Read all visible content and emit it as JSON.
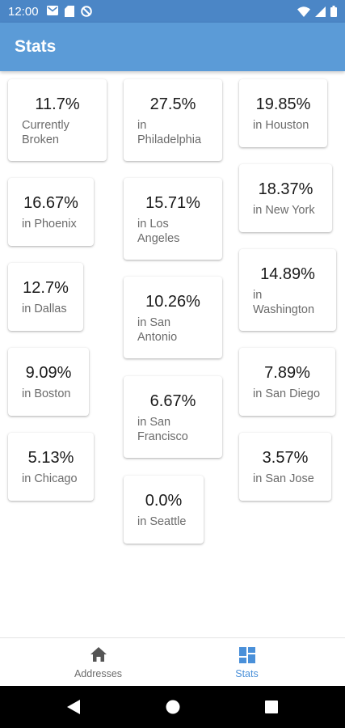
{
  "status_bar": {
    "time": "12:00",
    "left_icons": [
      "mail-icon",
      "sd-card-icon",
      "sync-disabled-icon"
    ],
    "right_icons": [
      "wifi-icon",
      "signal-icon",
      "battery-icon"
    ]
  },
  "app_bar": {
    "title": "Stats"
  },
  "cards": [
    {
      "percent": "11.7%",
      "label": "Currently Broken"
    },
    {
      "percent": "27.5%",
      "label": "in Philadelphia"
    },
    {
      "percent": "19.85%",
      "label": "in Houston"
    },
    {
      "percent": "16.67%",
      "label": "in Phoenix"
    },
    {
      "percent": "15.71%",
      "label": "in Los Angeles"
    },
    {
      "percent": "18.37%",
      "label": "in New York"
    },
    {
      "percent": "12.7%",
      "label": "in Dallas"
    },
    {
      "percent": "10.26%",
      "label": "in San Antonio"
    },
    {
      "percent": "14.89%",
      "label": "in Washington"
    },
    {
      "percent": "9.09%",
      "label": "in Boston"
    },
    {
      "percent": "6.67%",
      "label": "in San Francisco"
    },
    {
      "percent": "7.89%",
      "label": "in San Diego"
    },
    {
      "percent": "5.13%",
      "label": "in Chicago"
    },
    {
      "percent": "0.0%",
      "label": "in Seattle"
    },
    {
      "percent": "3.57%",
      "label": "in San Jose"
    }
  ],
  "bottom_nav": {
    "items": [
      {
        "label": "Addresses",
        "icon": "home-icon",
        "active": false
      },
      {
        "label": "Stats",
        "icon": "dashboard-icon",
        "active": true
      }
    ]
  },
  "colors": {
    "status_bar": "#4b86c6",
    "app_bar": "#5b9bd7",
    "accent": "#4a90d9"
  }
}
